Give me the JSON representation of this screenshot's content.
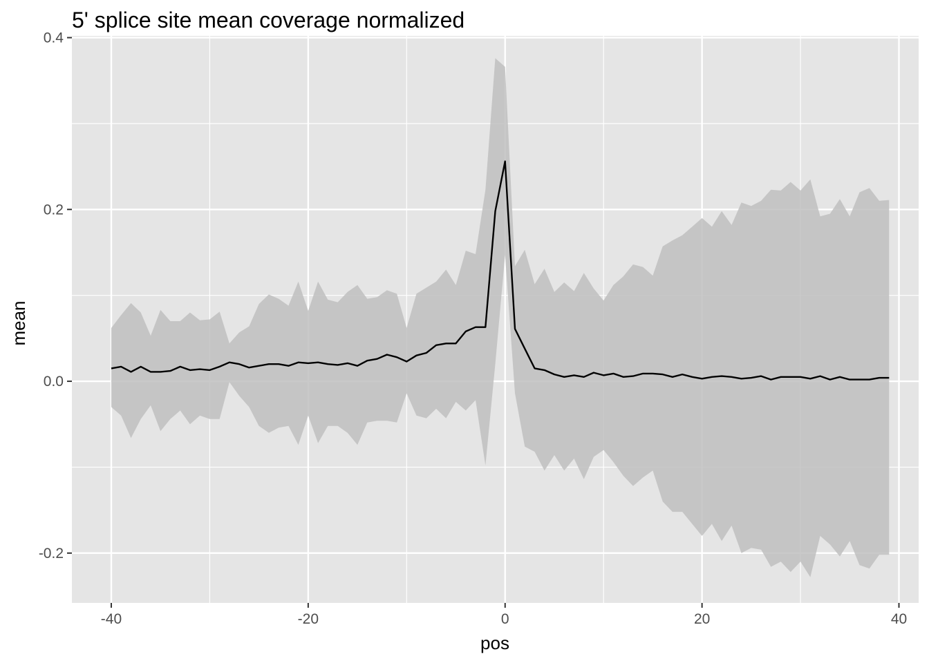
{
  "chart_data": {
    "type": "line",
    "title": "5' splice site mean coverage normalized",
    "xlabel": "pos",
    "ylabel": "mean",
    "xlim": [
      -44,
      42
    ],
    "ylim": [
      -0.258,
      0.402
    ],
    "x_ticks": [
      -40,
      -20,
      0,
      20,
      40
    ],
    "x_tick_labels": [
      "-40",
      "-20",
      "0",
      "20",
      "40"
    ],
    "y_ticks": [
      -0.2,
      0.0,
      0.2,
      0.4
    ],
    "y_tick_labels": [
      "-0.2",
      "0.0",
      "0.2",
      "0.4"
    ],
    "grid": true,
    "legend": "none",
    "colors": {
      "panel": "#e5e5e5",
      "grid": "#ffffff",
      "ribbon": "#bfbfbf",
      "line": "#000000"
    },
    "x": [
      -40,
      -39,
      -38,
      -37,
      -36,
      -35,
      -34,
      -33,
      -32,
      -31,
      -30,
      -29,
      -28,
      -27,
      -26,
      -25,
      -24,
      -23,
      -22,
      -21,
      -20,
      -19,
      -18,
      -17,
      -16,
      -15,
      -14,
      -13,
      -12,
      -11,
      -10,
      -9,
      -8,
      -7,
      -6,
      -5,
      -4,
      -3,
      -2,
      -1,
      0,
      1,
      2,
      3,
      4,
      5,
      6,
      7,
      8,
      9,
      10,
      11,
      12,
      13,
      14,
      15,
      16,
      17,
      18,
      19,
      20,
      21,
      22,
      23,
      24,
      25,
      26,
      27,
      28,
      29,
      30,
      31,
      32,
      33,
      34,
      35,
      36,
      37,
      38,
      39
    ],
    "series": [
      {
        "values": [
          0.015,
          0.017,
          0.011,
          0.017,
          0.011,
          0.011,
          0.012,
          0.017,
          0.013,
          0.014,
          0.013,
          0.017,
          0.022,
          0.02,
          0.016,
          0.018,
          0.02,
          0.02,
          0.018,
          0.022,
          0.021,
          0.022,
          0.02,
          0.019,
          0.021,
          0.018,
          0.024,
          0.026,
          0.031,
          0.028,
          0.023,
          0.03,
          0.033,
          0.042,
          0.044,
          0.044,
          0.058,
          0.063,
          0.063,
          0.198,
          0.256,
          0.061,
          0.038,
          0.015,
          0.013,
          0.008,
          0.005,
          0.007,
          0.005,
          0.01,
          0.007,
          0.009,
          0.005,
          0.006,
          0.009,
          0.009,
          0.008,
          0.005,
          0.008,
          0.005,
          0.003,
          0.005,
          0.006,
          0.005,
          0.003,
          0.004,
          0.006,
          0.002,
          0.005,
          0.005,
          0.005,
          0.003,
          0.006,
          0.002,
          0.005,
          0.002,
          0.002,
          0.002,
          0.004,
          0.004
        ],
        "lower": [
          -0.03,
          -0.04,
          -0.066,
          -0.044,
          -0.028,
          -0.058,
          -0.044,
          -0.034,
          -0.05,
          -0.04,
          -0.044,
          -0.044,
          -0.001,
          -0.017,
          -0.03,
          -0.052,
          -0.06,
          -0.054,
          -0.052,
          -0.074,
          -0.04,
          -0.072,
          -0.052,
          -0.052,
          -0.06,
          -0.074,
          -0.048,
          -0.046,
          -0.046,
          -0.048,
          -0.014,
          -0.04,
          -0.043,
          -0.032,
          -0.043,
          -0.024,
          -0.034,
          -0.022,
          -0.098,
          0.02,
          0.147,
          -0.014,
          -0.076,
          -0.082,
          -0.104,
          -0.086,
          -0.104,
          -0.09,
          -0.114,
          -0.088,
          -0.08,
          -0.094,
          -0.11,
          -0.122,
          -0.112,
          -0.104,
          -0.14,
          -0.152,
          -0.152,
          -0.166,
          -0.18,
          -0.166,
          -0.186,
          -0.168,
          -0.2,
          -0.194,
          -0.196,
          -0.216,
          -0.21,
          -0.222,
          -0.21,
          -0.228,
          -0.18,
          -0.19,
          -0.204,
          -0.186,
          -0.214,
          -0.218,
          -0.202,
          -0.202
        ],
        "upper": [
          0.062,
          0.077,
          0.091,
          0.08,
          0.053,
          0.083,
          0.07,
          0.07,
          0.08,
          0.071,
          0.072,
          0.081,
          0.044,
          0.057,
          0.064,
          0.09,
          0.101,
          0.096,
          0.088,
          0.116,
          0.082,
          0.116,
          0.095,
          0.092,
          0.104,
          0.112,
          0.096,
          0.098,
          0.106,
          0.102,
          0.062,
          0.102,
          0.109,
          0.116,
          0.13,
          0.112,
          0.152,
          0.148,
          0.223,
          0.376,
          0.366,
          0.134,
          0.153,
          0.113,
          0.131,
          0.104,
          0.115,
          0.105,
          0.126,
          0.108,
          0.094,
          0.112,
          0.122,
          0.136,
          0.133,
          0.123,
          0.157,
          0.164,
          0.17,
          0.18,
          0.19,
          0.18,
          0.198,
          0.182,
          0.208,
          0.204,
          0.21,
          0.223,
          0.222,
          0.232,
          0.222,
          0.235,
          0.192,
          0.195,
          0.212,
          0.192,
          0.22,
          0.225,
          0.21,
          0.211
        ]
      }
    ]
  }
}
